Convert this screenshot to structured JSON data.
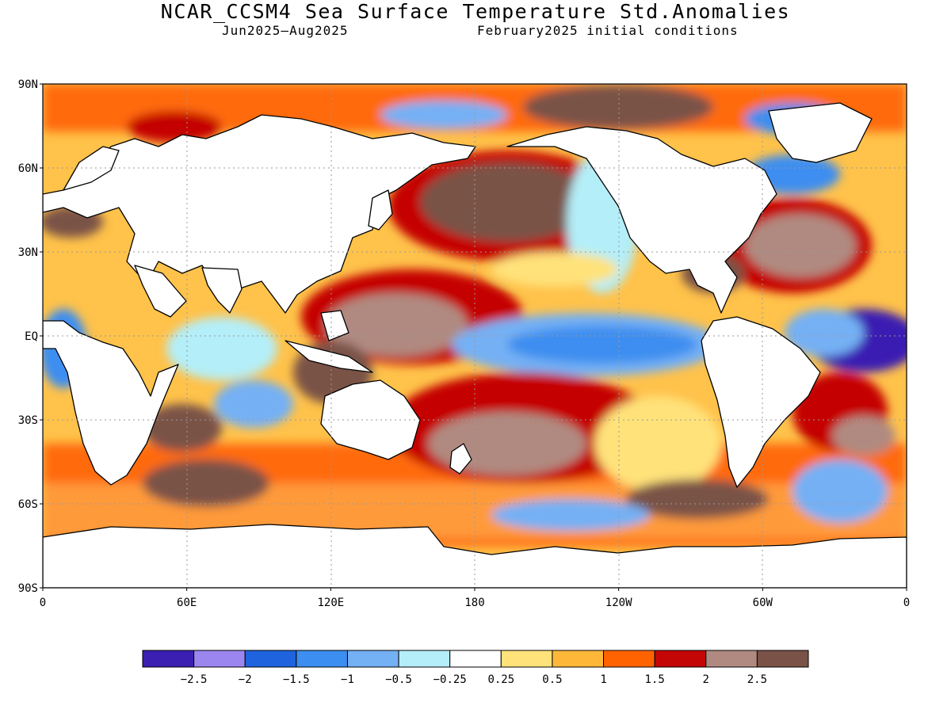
{
  "title": "NCAR_CCSM4 Sea Surface Temperature Std.Anomalies",
  "subtitle_left": "Jun2025–Aug2025",
  "subtitle_right": "February2025 initial conditions",
  "axes": {
    "lat_ticks": [
      "90N",
      "60N",
      "30N",
      "EQ",
      "30S",
      "60S",
      "90S"
    ],
    "lon_ticks": [
      "0",
      "60E",
      "120E",
      "180",
      "120W",
      "60W",
      "0"
    ],
    "lat_values": [
      90,
      60,
      30,
      0,
      -30,
      -60,
      -90
    ],
    "lon_values": [
      0,
      60,
      120,
      180,
      240,
      300,
      360
    ],
    "grid": "dotted"
  },
  "colorbar": {
    "labels": [
      "−2.5",
      "−2",
      "−1.5",
      "−1",
      "−0.5",
      "−0.25",
      "0.25",
      "0.5",
      "1",
      "1.5",
      "2",
      "2.5"
    ],
    "colors": [
      "#3a1fb2",
      "#9b86f0",
      "#1f64de",
      "#3c8ef0",
      "#74b0f4",
      "#b4eef8",
      "#ffffff",
      "#ffe27a",
      "#ffb73a",
      "#ff6300",
      "#c40606",
      "#b08a80",
      "#7a5247"
    ]
  },
  "colors": {
    "land": "#ffffff",
    "coast": "#000000",
    "ocean_base": "#ffd66b"
  }
}
